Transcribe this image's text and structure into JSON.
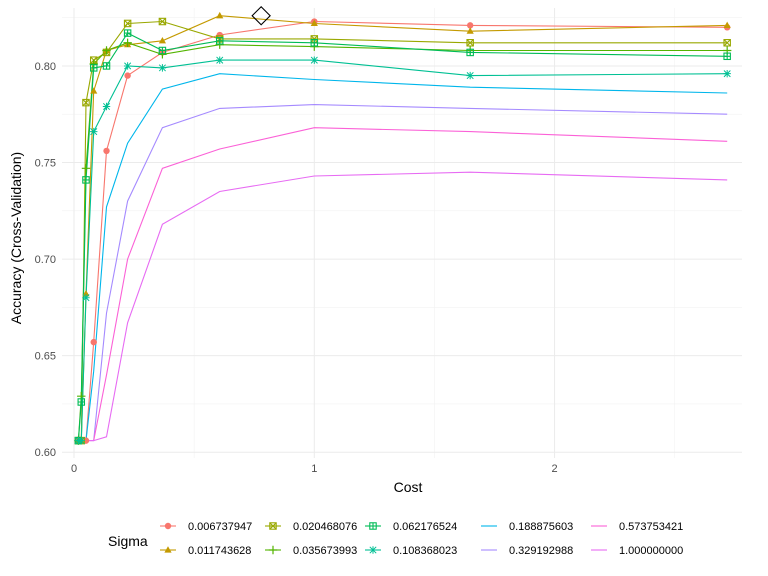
{
  "chart_data": {
    "type": "line",
    "title": "",
    "xlabel": "Cost",
    "ylabel": "Accuracy (Cross-Validation)",
    "xlim": [
      -0.05,
      2.78
    ],
    "ylim": [
      0.597,
      0.83
    ],
    "x_ticks": [
      0,
      1,
      2
    ],
    "x_tick_labels": [
      "0",
      "1",
      "2"
    ],
    "y_ticks": [
      0.6,
      0.65,
      0.7,
      0.75,
      0.8
    ],
    "y_tick_labels": [
      "0.60",
      "0.65",
      "0.70",
      "0.75",
      "0.80"
    ],
    "grid": true,
    "legend_title": "Sigma",
    "legend_position": "bottom",
    "x": [
      0.0183,
      0.0302,
      0.0498,
      0.0821,
      0.1353,
      0.2231,
      0.3679,
      0.6065,
      1.0,
      1.6487,
      2.7183
    ],
    "series": [
      {
        "name": "0.006737947",
        "color": "#F8766D",
        "marker": "circle",
        "values": [
          0.606,
          0.606,
          0.606,
          0.657,
          0.756,
          0.795,
          0.807,
          0.816,
          0.823,
          0.821,
          0.82
        ]
      },
      {
        "name": "0.011743628",
        "color": "#C49A00",
        "marker": "triangle",
        "values": [
          0.606,
          0.606,
          0.682,
          0.787,
          0.808,
          0.811,
          0.813,
          0.826,
          0.822,
          0.818,
          0.821
        ]
      },
      {
        "name": "0.020468076",
        "color": "#99A800",
        "marker": "square-x",
        "values": [
          0.606,
          0.606,
          0.781,
          0.803,
          0.807,
          0.822,
          0.823,
          0.814,
          0.814,
          0.812,
          0.812
        ]
      },
      {
        "name": "0.035673993",
        "color": "#53B400",
        "marker": "plus",
        "values": [
          0.606,
          0.629,
          0.747,
          0.801,
          0.808,
          0.812,
          0.806,
          0.811,
          0.81,
          0.808,
          0.808
        ]
      },
      {
        "name": "0.062176524",
        "color": "#00BC56",
        "marker": "square-cross",
        "values": [
          0.606,
          0.626,
          0.741,
          0.799,
          0.8,
          0.817,
          0.808,
          0.813,
          0.812,
          0.807,
          0.805
        ]
      },
      {
        "name": "0.108368023",
        "color": "#00C094",
        "marker": "asterisk",
        "values": [
          0.606,
          0.606,
          0.68,
          0.766,
          0.779,
          0.8,
          0.799,
          0.803,
          0.803,
          0.795,
          0.796
        ]
      },
      {
        "name": "0.188875603",
        "color": "#00B6EB",
        "marker": "none",
        "values": [
          0.606,
          0.606,
          0.606,
          0.642,
          0.727,
          0.76,
          0.788,
          0.796,
          0.793,
          0.789,
          0.786
        ]
      },
      {
        "name": "0.329192988",
        "color": "#A58AFF",
        "marker": "none",
        "values": [
          0.606,
          0.606,
          0.606,
          0.606,
          0.672,
          0.73,
          0.768,
          0.778,
          0.78,
          0.778,
          0.775
        ]
      },
      {
        "name": "0.573753421",
        "color": "#FB61D7",
        "marker": "none",
        "values": [
          0.606,
          0.606,
          0.606,
          0.606,
          0.64,
          0.7,
          0.747,
          0.757,
          0.768,
          0.766,
          0.761
        ]
      },
      {
        "name": "1.000000000",
        "color": "#E76BF3",
        "marker": "none",
        "values": [
          0.606,
          0.606,
          0.606,
          0.606,
          0.608,
          0.667,
          0.718,
          0.735,
          0.743,
          0.745,
          0.741
        ]
      }
    ],
    "highlight": {
      "marker": "diamond",
      "x": 0.7788,
      "y": 0.826
    }
  }
}
